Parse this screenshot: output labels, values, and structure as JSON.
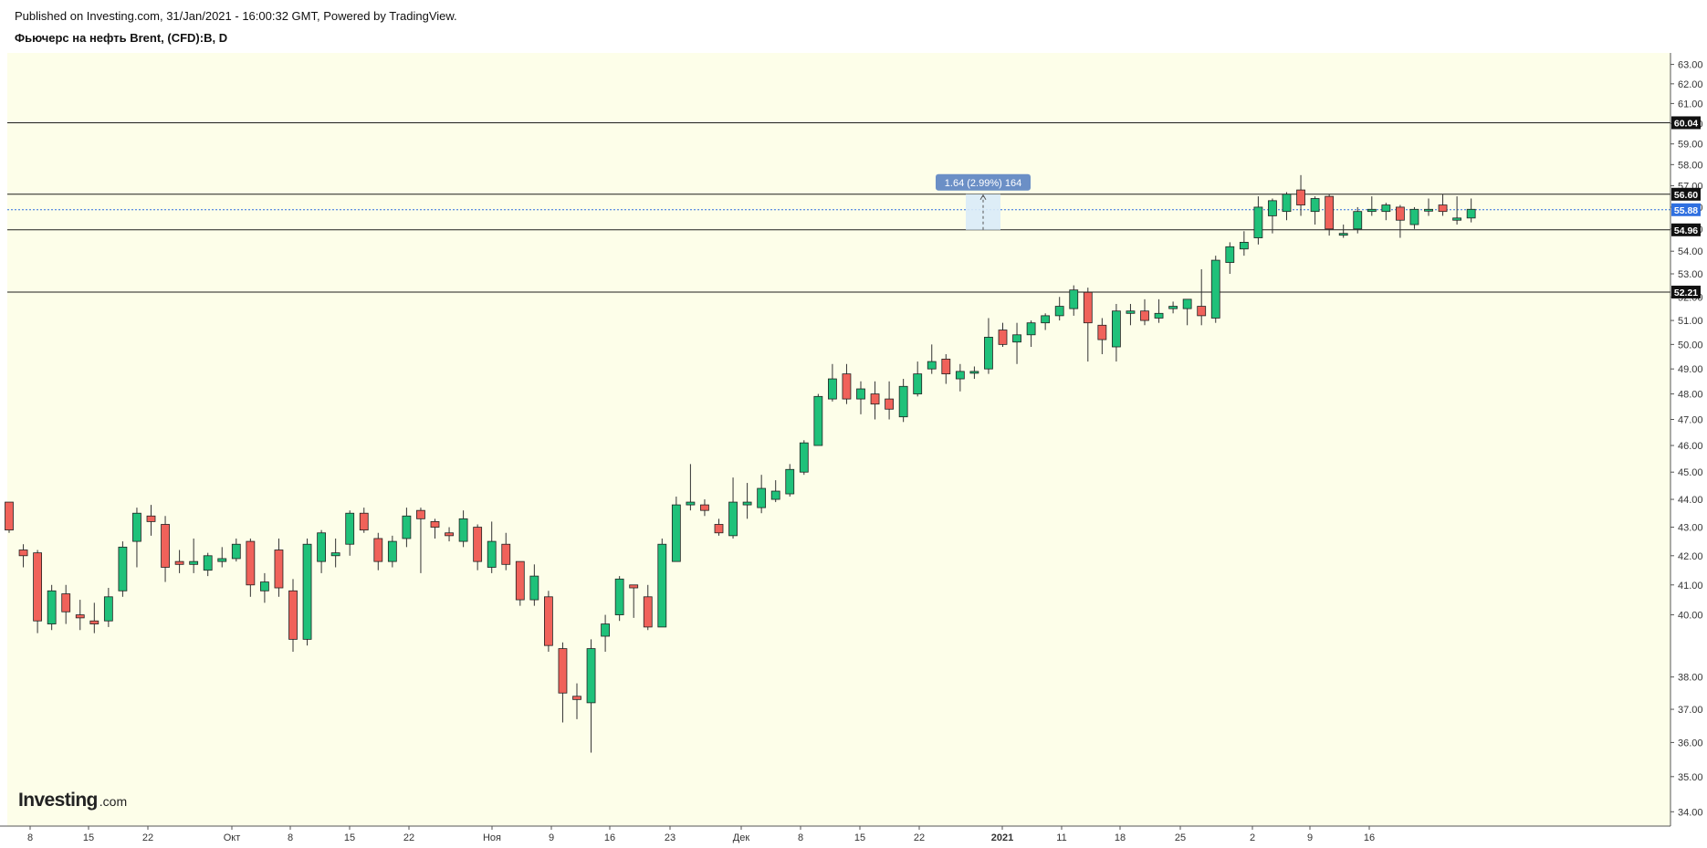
{
  "header": {
    "published_text": "Published on Investing.com, 31/Jan/2021 - 16:00:32 GMT, Powered by TradingView.",
    "symbol_text": "Фьючерс на нефть Brent, (CFD):B, D"
  },
  "logo": {
    "main": "Investing",
    "sub": ".com"
  },
  "colors": {
    "background": "#fdfee9",
    "up": "#1fc17a",
    "down": "#f0625a",
    "wick": "#333333",
    "level_line": "#1f1f1f",
    "last_price": "#2f6fe0",
    "measure_box": "#d9ebf8",
    "measure_label": "#6b8fc6"
  },
  "chart_data": {
    "type": "candlestick",
    "y_scale": "log",
    "ylim": [
      33.6,
      63.6
    ],
    "y_ticks": [
      "34.00",
      "35.00",
      "36.00",
      "37.00",
      "38.00",
      "40.00",
      "41.00",
      "42.00",
      "43.00",
      "44.00",
      "45.00",
      "46.00",
      "47.00",
      "48.00",
      "49.00",
      "50.00",
      "51.00",
      "52.00",
      "53.00",
      "54.00",
      "55.00",
      "56.00",
      "57.00",
      "58.00",
      "59.00",
      "60.00",
      "61.00",
      "62.00",
      "63.00"
    ],
    "x_ticks": [
      "8",
      "15",
      "22",
      "Окт",
      "8",
      "15",
      "22",
      "Ноя",
      "9",
      "16",
      "23",
      "Дек",
      "8",
      "15",
      "22",
      "2021",
      "11",
      "18",
      "25",
      "2",
      "9",
      "16"
    ],
    "horizontal_levels": [
      {
        "value": 60.04,
        "label": "60.04"
      },
      {
        "value": 56.6,
        "label": "56.60"
      },
      {
        "value": 54.96,
        "label": "54.96"
      },
      {
        "value": 52.21,
        "label": "52.21"
      }
    ],
    "last_price": {
      "value": 55.88,
      "label": "55.88"
    },
    "measure": {
      "label": "1.64 (2.99%) 164",
      "from": 54.96,
      "to": 56.6
    },
    "candles": [
      {
        "o": 43.9,
        "h": 43.9,
        "l": 42.8,
        "c": 42.9
      },
      {
        "o": 42.2,
        "h": 42.4,
        "l": 41.6,
        "c": 42.0
      },
      {
        "o": 42.1,
        "h": 42.2,
        "l": 39.4,
        "c": 39.8
      },
      {
        "o": 39.7,
        "h": 41.0,
        "l": 39.5,
        "c": 40.8
      },
      {
        "o": 40.7,
        "h": 41.0,
        "l": 39.7,
        "c": 40.1
      },
      {
        "o": 40.0,
        "h": 40.5,
        "l": 39.5,
        "c": 39.9
      },
      {
        "o": 39.8,
        "h": 40.4,
        "l": 39.4,
        "c": 39.7
      },
      {
        "o": 39.8,
        "h": 40.9,
        "l": 39.6,
        "c": 40.6
      },
      {
        "o": 40.8,
        "h": 42.5,
        "l": 40.6,
        "c": 42.3
      },
      {
        "o": 42.5,
        "h": 43.7,
        "l": 41.6,
        "c": 43.5
      },
      {
        "o": 43.4,
        "h": 43.8,
        "l": 42.7,
        "c": 43.2
      },
      {
        "o": 43.1,
        "h": 43.4,
        "l": 41.1,
        "c": 41.6
      },
      {
        "o": 41.8,
        "h": 42.2,
        "l": 41.4,
        "c": 41.7
      },
      {
        "o": 41.7,
        "h": 42.6,
        "l": 41.4,
        "c": 41.8
      },
      {
        "o": 41.5,
        "h": 42.1,
        "l": 41.3,
        "c": 42.0
      },
      {
        "o": 41.8,
        "h": 42.3,
        "l": 41.6,
        "c": 41.9
      },
      {
        "o": 41.9,
        "h": 42.6,
        "l": 41.8,
        "c": 42.4
      },
      {
        "o": 42.5,
        "h": 42.6,
        "l": 40.6,
        "c": 41.0
      },
      {
        "o": 40.8,
        "h": 41.4,
        "l": 40.4,
        "c": 41.1
      },
      {
        "o": 42.2,
        "h": 42.6,
        "l": 40.6,
        "c": 40.9
      },
      {
        "o": 40.8,
        "h": 41.2,
        "l": 38.8,
        "c": 39.2
      },
      {
        "o": 39.2,
        "h": 42.6,
        "l": 39.0,
        "c": 42.4
      },
      {
        "o": 41.8,
        "h": 42.9,
        "l": 41.4,
        "c": 42.8
      },
      {
        "o": 42.0,
        "h": 42.6,
        "l": 41.6,
        "c": 42.1
      },
      {
        "o": 42.4,
        "h": 43.6,
        "l": 42.0,
        "c": 43.5
      },
      {
        "o": 43.5,
        "h": 43.7,
        "l": 42.8,
        "c": 42.9
      },
      {
        "o": 42.6,
        "h": 42.8,
        "l": 41.5,
        "c": 41.8
      },
      {
        "o": 41.8,
        "h": 42.7,
        "l": 41.6,
        "c": 42.5
      },
      {
        "o": 42.6,
        "h": 43.7,
        "l": 42.3,
        "c": 43.4
      },
      {
        "o": 43.6,
        "h": 43.7,
        "l": 41.4,
        "c": 43.3
      },
      {
        "o": 43.2,
        "h": 43.3,
        "l": 42.6,
        "c": 43.0
      },
      {
        "o": 42.8,
        "h": 43.0,
        "l": 42.5,
        "c": 42.7
      },
      {
        "o": 42.5,
        "h": 43.6,
        "l": 42.3,
        "c": 43.3
      },
      {
        "o": 43.0,
        "h": 43.1,
        "l": 41.5,
        "c": 41.8
      },
      {
        "o": 41.6,
        "h": 43.2,
        "l": 41.4,
        "c": 42.5
      },
      {
        "o": 42.4,
        "h": 42.8,
        "l": 41.5,
        "c": 41.7
      },
      {
        "o": 41.8,
        "h": 41.8,
        "l": 40.3,
        "c": 40.5
      },
      {
        "o": 40.5,
        "h": 41.7,
        "l": 40.3,
        "c": 41.3
      },
      {
        "o": 40.6,
        "h": 40.8,
        "l": 38.8,
        "c": 39.0
      },
      {
        "o": 38.9,
        "h": 39.1,
        "l": 36.6,
        "c": 37.5
      },
      {
        "o": 37.4,
        "h": 37.8,
        "l": 36.7,
        "c": 37.3
      },
      {
        "o": 37.2,
        "h": 39.2,
        "l": 35.7,
        "c": 38.9
      },
      {
        "o": 39.3,
        "h": 40.0,
        "l": 38.8,
        "c": 39.7
      },
      {
        "o": 40.0,
        "h": 41.3,
        "l": 39.8,
        "c": 41.2
      },
      {
        "o": 41.0,
        "h": 41.0,
        "l": 39.9,
        "c": 40.9
      },
      {
        "o": 40.6,
        "h": 41.0,
        "l": 39.5,
        "c": 39.6
      },
      {
        "o": 39.6,
        "h": 42.6,
        "l": 39.6,
        "c": 42.4
      },
      {
        "o": 41.8,
        "h": 44.1,
        "l": 41.8,
        "c": 43.8
      },
      {
        "o": 43.8,
        "h": 45.3,
        "l": 43.6,
        "c": 43.9
      },
      {
        "o": 43.8,
        "h": 44.0,
        "l": 43.4,
        "c": 43.6
      },
      {
        "o": 43.1,
        "h": 43.3,
        "l": 42.7,
        "c": 42.8
      },
      {
        "o": 42.7,
        "h": 44.8,
        "l": 42.6,
        "c": 43.9
      },
      {
        "o": 43.8,
        "h": 44.6,
        "l": 43.3,
        "c": 43.9
      },
      {
        "o": 43.7,
        "h": 44.9,
        "l": 43.5,
        "c": 44.4
      },
      {
        "o": 44.0,
        "h": 44.7,
        "l": 43.9,
        "c": 44.3
      },
      {
        "o": 44.2,
        "h": 45.3,
        "l": 44.1,
        "c": 45.1
      },
      {
        "o": 45.0,
        "h": 46.2,
        "l": 44.9,
        "c": 46.1
      },
      {
        "o": 46.0,
        "h": 48.0,
        "l": 46.0,
        "c": 47.9
      },
      {
        "o": 47.8,
        "h": 49.2,
        "l": 47.7,
        "c": 48.6
      },
      {
        "o": 48.8,
        "h": 49.2,
        "l": 47.6,
        "c": 47.8
      },
      {
        "o": 47.8,
        "h": 48.5,
        "l": 47.2,
        "c": 48.2
      },
      {
        "o": 48.0,
        "h": 48.5,
        "l": 47.0,
        "c": 47.6
      },
      {
        "o": 47.8,
        "h": 48.5,
        "l": 47.0,
        "c": 47.4
      },
      {
        "o": 47.1,
        "h": 48.6,
        "l": 46.9,
        "c": 48.3
      },
      {
        "o": 48.0,
        "h": 49.3,
        "l": 47.9,
        "c": 48.8
      },
      {
        "o": 49.0,
        "h": 50.0,
        "l": 48.8,
        "c": 49.3
      },
      {
        "o": 49.4,
        "h": 49.6,
        "l": 48.4,
        "c": 48.8
      },
      {
        "o": 48.6,
        "h": 49.2,
        "l": 48.1,
        "c": 48.9
      },
      {
        "o": 48.9,
        "h": 49.1,
        "l": 48.6,
        "c": 48.9
      },
      {
        "o": 49.0,
        "h": 51.1,
        "l": 48.8,
        "c": 50.3
      },
      {
        "o": 50.6,
        "h": 50.9,
        "l": 49.9,
        "c": 50.0
      },
      {
        "o": 50.1,
        "h": 50.9,
        "l": 49.2,
        "c": 50.4
      },
      {
        "o": 50.4,
        "h": 51.0,
        "l": 49.9,
        "c": 50.9
      },
      {
        "o": 50.9,
        "h": 51.3,
        "l": 50.6,
        "c": 51.2
      },
      {
        "o": 51.2,
        "h": 52.0,
        "l": 51.0,
        "c": 51.6
      },
      {
        "o": 51.5,
        "h": 52.5,
        "l": 51.2,
        "c": 52.3
      },
      {
        "o": 52.2,
        "h": 52.4,
        "l": 49.3,
        "c": 50.9
      },
      {
        "o": 50.8,
        "h": 51.1,
        "l": 49.6,
        "c": 50.2
      },
      {
        "o": 49.9,
        "h": 51.7,
        "l": 49.3,
        "c": 51.4
      },
      {
        "o": 51.3,
        "h": 51.7,
        "l": 50.8,
        "c": 51.4
      },
      {
        "o": 51.4,
        "h": 51.9,
        "l": 50.8,
        "c": 51.0
      },
      {
        "o": 51.1,
        "h": 51.9,
        "l": 50.9,
        "c": 51.3
      },
      {
        "o": 51.5,
        "h": 51.8,
        "l": 51.3,
        "c": 51.6
      },
      {
        "o": 51.5,
        "h": 51.9,
        "l": 50.8,
        "c": 51.9
      },
      {
        "o": 51.6,
        "h": 53.2,
        "l": 50.8,
        "c": 51.2
      },
      {
        "o": 51.1,
        "h": 53.8,
        "l": 50.9,
        "c": 53.6
      },
      {
        "o": 53.5,
        "h": 54.4,
        "l": 53.0,
        "c": 54.2
      },
      {
        "o": 54.1,
        "h": 54.9,
        "l": 53.8,
        "c": 54.4
      },
      {
        "o": 54.6,
        "h": 56.5,
        "l": 54.3,
        "c": 56.0
      },
      {
        "o": 55.6,
        "h": 56.4,
        "l": 54.8,
        "c": 56.3
      },
      {
        "o": 55.8,
        "h": 56.7,
        "l": 55.4,
        "c": 56.6
      },
      {
        "o": 56.8,
        "h": 57.5,
        "l": 55.6,
        "c": 56.1
      },
      {
        "o": 55.8,
        "h": 56.5,
        "l": 55.2,
        "c": 56.4
      },
      {
        "o": 56.5,
        "h": 56.6,
        "l": 54.7,
        "c": 55.0
      },
      {
        "o": 54.8,
        "h": 55.2,
        "l": 54.6,
        "c": 54.8
      },
      {
        "o": 55.0,
        "h": 56.0,
        "l": 54.8,
        "c": 55.8
      },
      {
        "o": 55.8,
        "h": 56.5,
        "l": 55.6,
        "c": 55.9
      },
      {
        "o": 55.8,
        "h": 56.2,
        "l": 55.4,
        "c": 56.1
      },
      {
        "o": 56.0,
        "h": 56.1,
        "l": 54.6,
        "c": 55.4
      },
      {
        "o": 55.2,
        "h": 56.0,
        "l": 55.0,
        "c": 55.9
      },
      {
        "o": 55.9,
        "h": 56.4,
        "l": 55.6,
        "c": 55.9
      },
      {
        "o": 56.1,
        "h": 56.6,
        "l": 55.6,
        "c": 55.8
      },
      {
        "o": 55.4,
        "h": 56.5,
        "l": 55.2,
        "c": 55.5
      },
      {
        "o": 55.5,
        "h": 56.4,
        "l": 55.3,
        "c": 55.9
      }
    ]
  }
}
